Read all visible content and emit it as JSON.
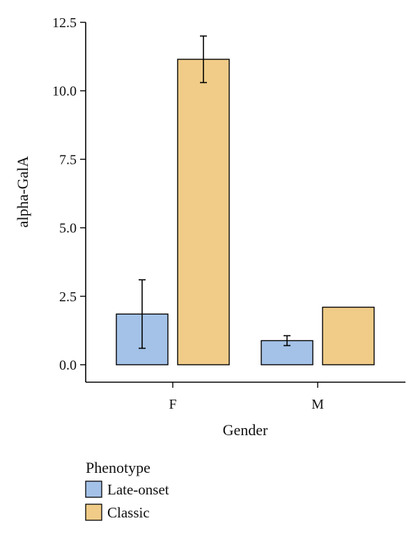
{
  "chart_data": {
    "type": "bar",
    "categories": [
      "F",
      "M"
    ],
    "series": [
      {
        "name": "Late-onset",
        "color": "#a4c2e8",
        "values": [
          1.85,
          0.88
        ],
        "error": [
          1.25,
          0.18
        ]
      },
      {
        "name": "Classic",
        "color": "#f0cc88",
        "values": [
          11.15,
          2.1
        ],
        "error": [
          0.85,
          null
        ]
      }
    ],
    "xlabel": "Gender",
    "ylabel": "alpha-GalA",
    "ylim": [
      0,
      12.5
    ],
    "yticks": [
      "0.0",
      "2.5",
      "5.0",
      "7.5",
      "10.0",
      "12.5"
    ],
    "legend_title": "Phenotype",
    "legend_position": "bottom-left",
    "grid": false
  }
}
